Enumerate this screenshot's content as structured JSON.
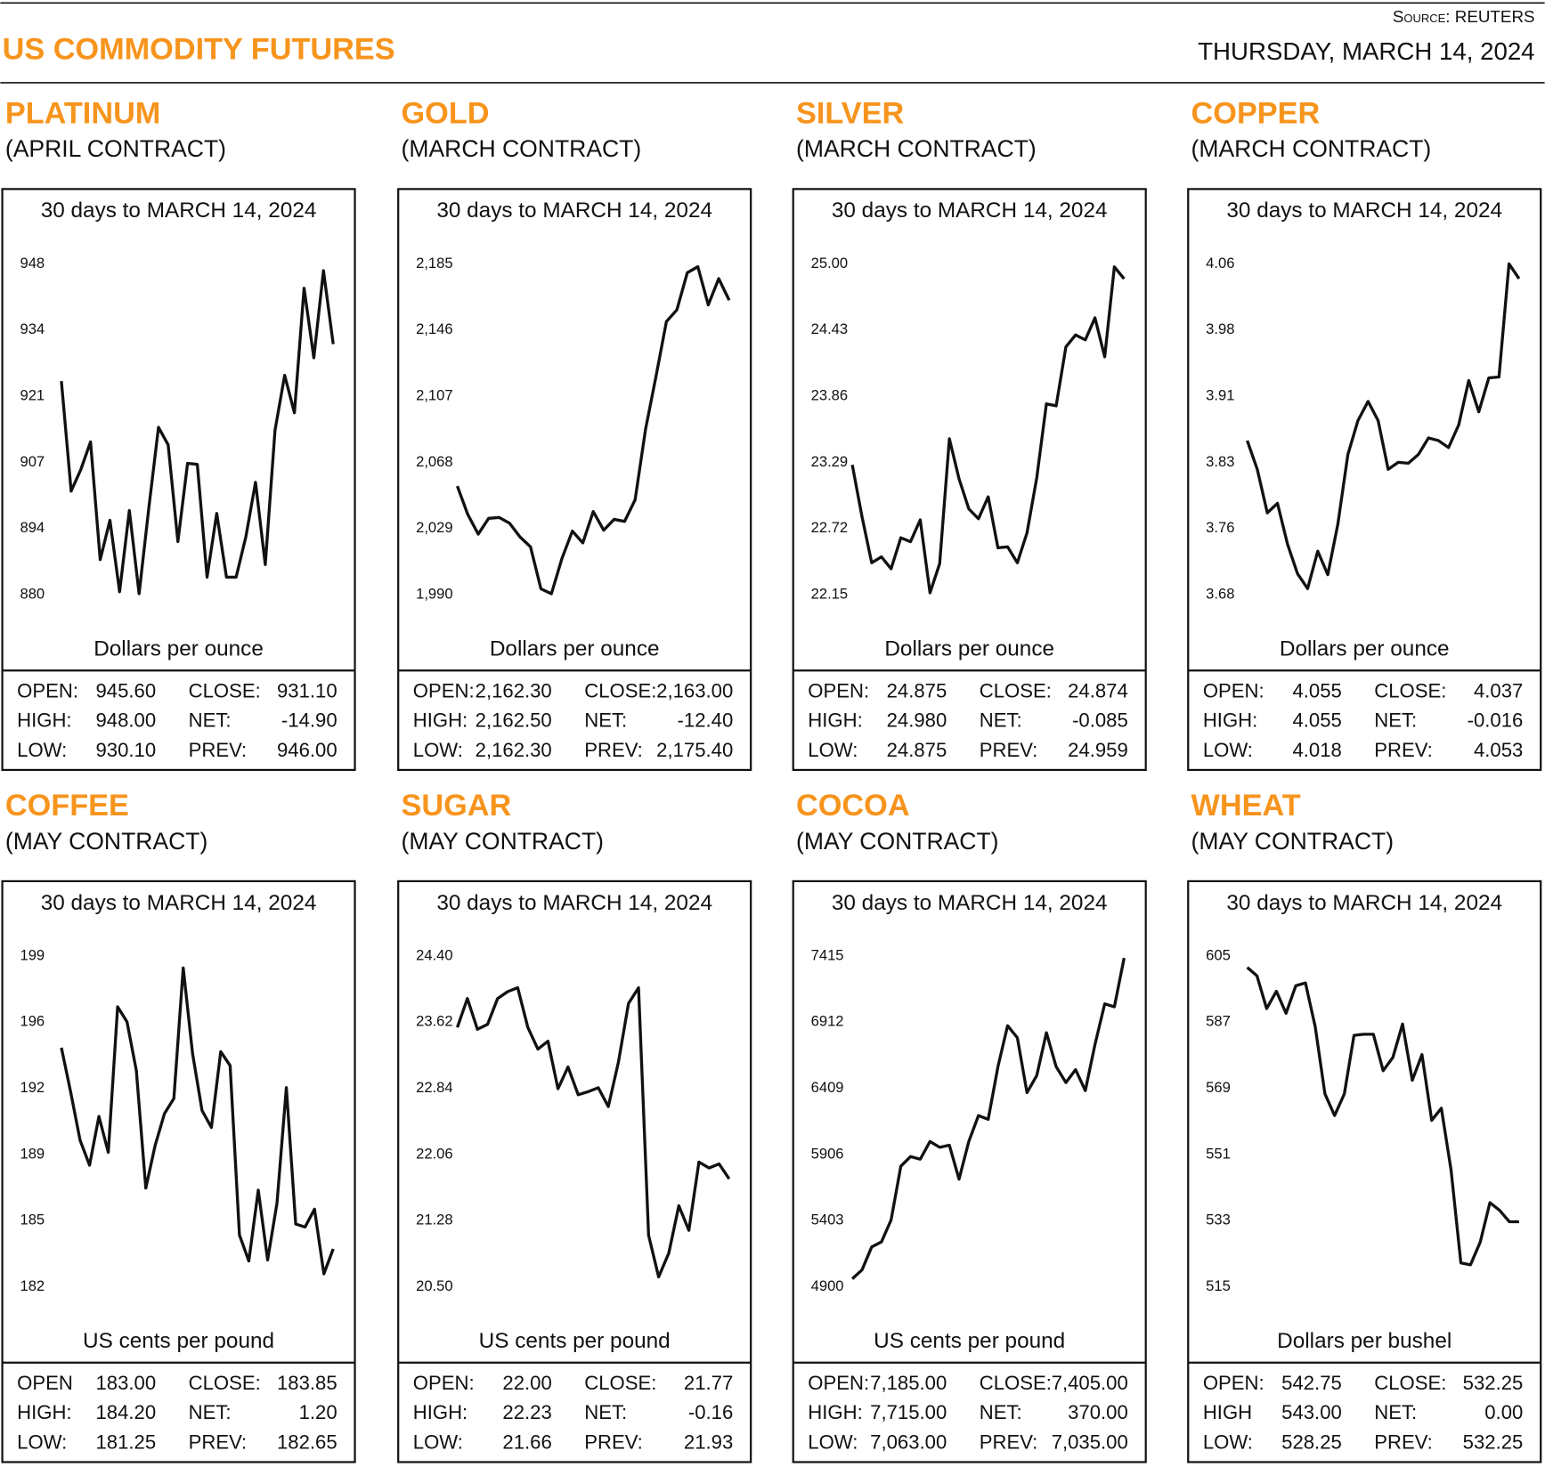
{
  "header": {
    "title": "US COMMODITY FUTURES",
    "source": "Source: REUTERS",
    "date": "THURSDAY, MARCH 14, 2024"
  },
  "chart_data": [
    {
      "type": "line",
      "title": "PLATINUM",
      "subtitle": "(APRIL CONTRACT)",
      "caption": "30 days to MARCH 14, 2024",
      "ylabel": "Dollars per ounce",
      "color": "#111111",
      "ylim": [
        880,
        948
      ],
      "yticks": [
        880,
        {
          "value": 893.6,
          "label": "894"
        },
        {
          "value": 907.2,
          "label": "907"
        },
        {
          "value": 920.8,
          "label": "921"
        },
        {
          "value": 934.4,
          "label": "934"
        },
        948
      ],
      "values": [
        923.9,
        901.3,
        905.7,
        911.4,
        887.2,
        895.3,
        880.6,
        897.3,
        880.2,
        897.7,
        914.4,
        910.8,
        890.9,
        907.0,
        906.8,
        883.6,
        896.7,
        883.6,
        883.6,
        891.9,
        903.1,
        886.2,
        913.8,
        925.1,
        917.4,
        943.0,
        928.7,
        946.6,
        931.5
      ],
      "stats": [
        {
          "label": "OPEN:",
          "value": "945.60"
        },
        {
          "label": "HIGH:",
          "value": "948.00"
        },
        {
          "label": "LOW:",
          "value": "930.10"
        },
        {
          "label": "CLOSE:",
          "value": "931.10"
        },
        {
          "label": "NET:",
          "value": "-14.90"
        },
        {
          "label": "PREV:",
          "value": "946.00"
        }
      ]
    },
    {
      "type": "line",
      "title": "GOLD",
      "subtitle": "(MARCH CONTRACT)",
      "caption": "30 days to MARCH 14, 2024",
      "ylabel": "Dollars per ounce",
      "color": "#111111",
      "ylim": [
        1990,
        2185
      ],
      "yticks": [
        {
          "value": 1990,
          "label": "1,990"
        },
        {
          "value": 2029,
          "label": "2,029"
        },
        {
          "value": 2068,
          "label": "2,068"
        },
        {
          "value": 2107,
          "label": "2,107"
        },
        {
          "value": 2146,
          "label": "2,146"
        },
        {
          "value": 2185,
          "label": "2,185"
        }
      ],
      "values": [
        2054.0,
        2037.3,
        2025.7,
        2035.0,
        2035.5,
        2032.1,
        2024.0,
        2018.2,
        1993.4,
        1990.5,
        2011.3,
        2027.5,
        2020.5,
        2039.0,
        2028.0,
        2034.4,
        2033.2,
        2045.9,
        2087.5,
        2118.6,
        2151.0,
        2157.9,
        2179.8,
        2183.3,
        2160.8,
        2176.3,
        2163.6
      ],
      "stats": [
        {
          "label": "OPEN:",
          "value": "2,162.30"
        },
        {
          "label": "HIGH:",
          "value": "2,162.50"
        },
        {
          "label": "LOW:",
          "value": "2,162.30"
        },
        {
          "label": "CLOSE:",
          "value": "2,163.00"
        },
        {
          "label": "NET:",
          "value": "-12.40"
        },
        {
          "label": "PREV:",
          "value": "2,175.40"
        }
      ]
    },
    {
      "type": "line",
      "title": "SILVER",
      "subtitle": "(MARCH CONTRACT)",
      "caption": "30 days to MARCH 14, 2024",
      "ylabel": "Dollars per ounce",
      "color": "#111111",
      "ylim": [
        22.15,
        25
      ],
      "yticks": [
        22.15,
        22.72,
        23.29,
        23.86,
        24.43,
        {
          "value": 25,
          "label": "25.00"
        }
      ],
      "values": [
        23.269,
        22.821,
        22.425,
        22.476,
        22.373,
        22.64,
        22.606,
        22.795,
        22.166,
        22.416,
        23.493,
        23.148,
        22.89,
        22.804,
        22.993,
        22.554,
        22.562,
        22.425,
        22.683,
        23.157,
        23.794,
        23.777,
        24.285,
        24.388,
        24.345,
        24.535,
        24.199,
        24.974,
        24.871
      ],
      "stats": [
        {
          "label": "OPEN:",
          "value": "24.875"
        },
        {
          "label": "HIGH:",
          "value": "24.980"
        },
        {
          "label": "LOW:",
          "value": "24.875"
        },
        {
          "label": "CLOSE:",
          "value": "24.874"
        },
        {
          "label": "NET:",
          "value": "-0.085"
        },
        {
          "label": "PREV:",
          "value": "24.959"
        }
      ]
    },
    {
      "type": "line",
      "title": "COPPER",
      "subtitle": "(MARCH CONTRACT)",
      "caption": "30 days to MARCH 14, 2024",
      "ylabel": "Dollars per ounce",
      "color": "#111111",
      "ylim": [
        3.68,
        4.06
      ],
      "yticks": [
        3.68,
        {
          "value": 3.756,
          "label": "3.76"
        },
        {
          "value": 3.832,
          "label": "3.83"
        },
        {
          "value": 3.908,
          "label": "3.91"
        },
        {
          "value": 3.984,
          "label": "3.98"
        },
        4.06
      ],
      "values": [
        3.857,
        3.824,
        3.774,
        3.785,
        3.738,
        3.704,
        3.687,
        3.73,
        3.703,
        3.761,
        3.841,
        3.88,
        3.902,
        3.88,
        3.824,
        3.832,
        3.831,
        3.841,
        3.86,
        3.857,
        3.849,
        3.875,
        3.926,
        3.89,
        3.929,
        3.93,
        4.06,
        4.043
      ],
      "stats": [
        {
          "label": "OPEN:",
          "value": "4.055"
        },
        {
          "label": "HIGH:",
          "value": "4.055"
        },
        {
          "label": "LOW:",
          "value": "4.018"
        },
        {
          "label": "CLOSE:",
          "value": "4.037"
        },
        {
          "label": "NET:",
          "value": "-0.016"
        },
        {
          "label": "PREV:",
          "value": "4.053"
        }
      ]
    },
    {
      "type": "line",
      "title": "COFFEE",
      "subtitle": "(MAY CONTRACT)",
      "caption": "30 days to MARCH 14, 2024",
      "ylabel": "US cents per pound",
      "color": "#111111",
      "ylim": [
        182,
        199
      ],
      "yticks": [
        182,
        {
          "value": 185.4,
          "label": "185"
        },
        {
          "value": 188.8,
          "label": "189"
        },
        {
          "value": 192.2,
          "label": "192"
        },
        {
          "value": 195.6,
          "label": "196"
        },
        199
      ],
      "values": [
        194.29,
        191.99,
        189.53,
        188.25,
        190.76,
        188.91,
        196.39,
        195.62,
        193.11,
        187.07,
        189.27,
        190.91,
        191.68,
        198.39,
        193.98,
        191.06,
        190.19,
        194.08,
        193.37,
        184.66,
        183.33,
        186.97,
        183.38,
        186.3,
        192.24,
        185.23,
        185.07,
        185.99,
        182.67,
        183.95
      ],
      "stats": [
        {
          "label": "OPEN",
          "value": "183.00"
        },
        {
          "label": "HIGH:",
          "value": "184.20"
        },
        {
          "label": "LOW:",
          "value": "181.25"
        },
        {
          "label": "CLOSE:",
          "value": "183.85"
        },
        {
          "label": "NET:",
          "value": "1.20"
        },
        {
          "label": "PREV:",
          "value": "182.65"
        }
      ]
    },
    {
      "type": "line",
      "title": "SUGAR",
      "subtitle": "(MAY CONTRACT)",
      "caption": "30 days to MARCH 14, 2024",
      "ylabel": "US cents per pound",
      "color": "#111111",
      "ylim": [
        20.5,
        24.4
      ],
      "yticks": [
        {
          "value": 20.5,
          "label": "20.50"
        },
        21.28,
        22.06,
        22.84,
        23.62,
        {
          "value": 24.4,
          "label": "24.40"
        }
      ],
      "values": [
        23.559,
        23.898,
        23.536,
        23.594,
        23.898,
        23.98,
        24.026,
        23.559,
        23.302,
        23.396,
        22.835,
        23.092,
        22.765,
        22.8,
        22.847,
        22.625,
        23.151,
        23.84,
        24.026,
        21.107,
        20.617,
        20.897,
        21.457,
        21.166,
        21.971,
        21.901,
        21.948,
        21.773
      ],
      "stats": [
        {
          "label": "OPEN:",
          "value": "22.00"
        },
        {
          "label": "HIGH:",
          "value": "22.23"
        },
        {
          "label": "LOW:",
          "value": "21.66"
        },
        {
          "label": "CLOSE:",
          "value": "21.77"
        },
        {
          "label": "NET:",
          "value": "-0.16"
        },
        {
          "label": "PREV:",
          "value": "21.93"
        }
      ]
    },
    {
      "type": "line",
      "title": "COCOA",
      "subtitle": "(MAY CONTRACT)",
      "caption": "30 days to MARCH 14, 2024",
      "ylabel": "US cents per pound",
      "color": "#111111",
      "ylim": [
        4900,
        7415
      ],
      "yticks": [
        4900,
        5403,
        5906,
        6409,
        6912,
        7415
      ],
      "values": [
        4961,
        5029,
        5203,
        5241,
        5408,
        5817,
        5890,
        5870,
        6005,
        5961,
        5976,
        5718,
        6005,
        6202,
        6173,
        6574,
        6885,
        6794,
        6376,
        6506,
        6832,
        6574,
        6453,
        6551,
        6392,
        6741,
        7051,
        7029,
        7400
      ],
      "stats": [
        {
          "label": "OPEN:",
          "value": "7,185.00"
        },
        {
          "label": "HIGH:",
          "value": "7,715.00"
        },
        {
          "label": "LOW:",
          "value": "7,063.00"
        },
        {
          "label": "CLOSE:",
          "value": "7,405.00"
        },
        {
          "label": "NET:",
          "value": "370.00"
        },
        {
          "label": "PREV:",
          "value": "7,035.00"
        }
      ]
    },
    {
      "type": "line",
      "title": "WHEAT",
      "subtitle": "(MAY CONTRACT)",
      "caption": "30 days to MARCH 14, 2024",
      "ylabel": "Dollars per bushel",
      "color": "#111111",
      "ylim": [
        515,
        605
      ],
      "yticks": [
        515,
        533,
        551,
        569,
        587,
        605
      ],
      "values": [
        601.9,
        599.6,
        590.7,
        595.4,
        589.4,
        596.9,
        597.7,
        585.8,
        567.5,
        561.6,
        567.5,
        583.4,
        583.7,
        583.7,
        573.8,
        577.4,
        586.5,
        571.2,
        578.2,
        560.3,
        563.6,
        546.7,
        521.5,
        521.0,
        527.2,
        537.9,
        535.8,
        532.7,
        532.7
      ],
      "stats": [
        {
          "label": "OPEN:",
          "value": "542.75"
        },
        {
          "label": "HIGH",
          "value": "543.00"
        },
        {
          "label": "LOW:",
          "value": "528.25"
        },
        {
          "label": "CLOSE:",
          "value": "532.25"
        },
        {
          "label": "NET:",
          "value": "0.00"
        },
        {
          "label": "PREV:",
          "value": "532.25"
        }
      ]
    }
  ]
}
